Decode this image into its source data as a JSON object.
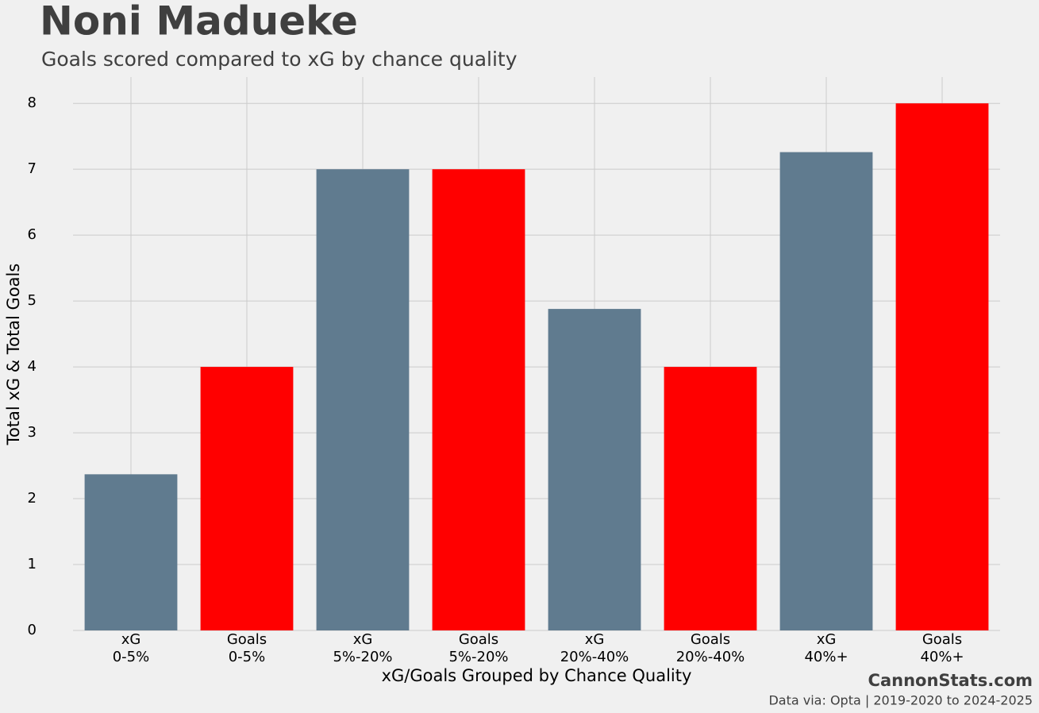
{
  "chart_data": {
    "type": "bar",
    "title": "Noni Madueke",
    "subtitle": "Goals scored compared to xG by chance quality",
    "x_label": "xG/Goals Grouped by Chance Quality",
    "y_label": "Total xG & Total Goals",
    "brand": "CannonStats.com",
    "source": "Data via: Opta | 2019-2020 to 2024-2025",
    "categories": [
      [
        "xG",
        "0-5%"
      ],
      [
        "Goals",
        "0-5%"
      ],
      [
        "xG",
        "5%-20%"
      ],
      [
        "Goals",
        "5%-20%"
      ],
      [
        "xG",
        "20%-40%"
      ],
      [
        "Goals",
        "20%-40%"
      ],
      [
        "xG",
        "40%+"
      ],
      [
        "Goals",
        "40%+"
      ]
    ],
    "values": [
      2.37,
      4,
      7,
      7,
      4.88,
      4,
      7.26,
      8
    ],
    "colors": [
      "#607b8f",
      "#ff0000",
      "#607b8f",
      "#ff0000",
      "#607b8f",
      "#ff0000",
      "#607b8f",
      "#ff0000"
    ],
    "ylim": [
      0,
      8.4
    ],
    "yticks": [
      0,
      1,
      2,
      3,
      4,
      5,
      6,
      7,
      8
    ],
    "grid": true
  }
}
